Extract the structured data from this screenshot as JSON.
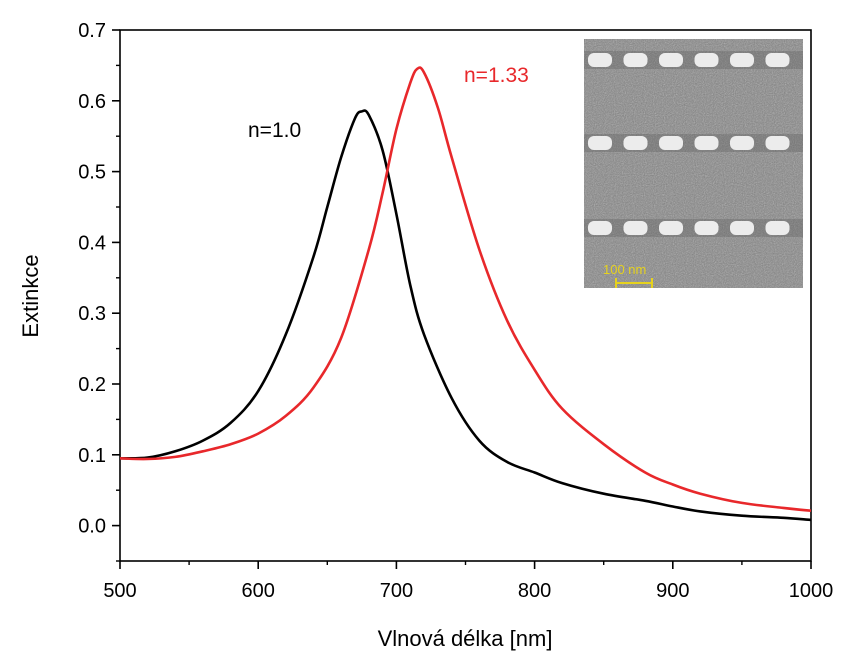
{
  "chart_data": {
    "type": "line",
    "title": "",
    "xlabel": "Vlnová délka [nm]",
    "ylabel": "Extinkce",
    "xlim": [
      500,
      1000
    ],
    "ylim": [
      -0.05,
      0.7
    ],
    "x_ticks": [
      500,
      600,
      700,
      800,
      900,
      1000
    ],
    "x_tick_labels": [
      "500",
      "600",
      "700",
      "800",
      "900",
      "1000"
    ],
    "y_ticks": [
      0.0,
      0.1,
      0.2,
      0.3,
      0.4,
      0.5,
      0.6,
      0.7
    ],
    "y_tick_labels": [
      "0.0",
      "0.1",
      "0.2",
      "0.3",
      "0.4",
      "0.5",
      "0.6",
      "0.7"
    ],
    "grid": false,
    "series": [
      {
        "name": "n=1.0",
        "color": "#000000",
        "x": [
          500,
          520,
          540,
          560,
          580,
          600,
          620,
          640,
          650,
          660,
          670,
          675,
          680,
          690,
          700,
          710,
          720,
          740,
          760,
          780,
          800,
          820,
          850,
          880,
          900,
          920,
          950,
          980,
          1000
        ],
        "y": [
          0.095,
          0.096,
          0.105,
          0.12,
          0.145,
          0.19,
          0.27,
          0.38,
          0.45,
          0.52,
          0.575,
          0.585,
          0.58,
          0.53,
          0.44,
          0.34,
          0.27,
          0.18,
          0.12,
          0.09,
          0.075,
          0.06,
          0.045,
          0.035,
          0.027,
          0.02,
          0.014,
          0.011,
          0.008
        ]
      },
      {
        "name": "n=1.33",
        "color": "#e8282b",
        "x": [
          500,
          520,
          540,
          560,
          580,
          600,
          620,
          640,
          660,
          680,
          690,
          700,
          710,
          715,
          720,
          730,
          740,
          760,
          780,
          800,
          820,
          850,
          880,
          900,
          920,
          950,
          980,
          1000
        ],
        "y": [
          0.095,
          0.094,
          0.097,
          0.105,
          0.115,
          0.13,
          0.155,
          0.195,
          0.265,
          0.39,
          0.47,
          0.56,
          0.625,
          0.645,
          0.64,
          0.59,
          0.52,
          0.39,
          0.29,
          0.22,
          0.165,
          0.115,
          0.075,
          0.058,
          0.045,
          0.032,
          0.025,
          0.021
        ]
      }
    ],
    "annotations": [
      {
        "text": "n=1.0",
        "series": 0
      },
      {
        "text": "n=1.33",
        "series": 1
      }
    ],
    "inset": {
      "kind": "SEM micrograph",
      "scale_bar_label": "100 nm",
      "scale_bar_color": "#e6d21e"
    }
  }
}
